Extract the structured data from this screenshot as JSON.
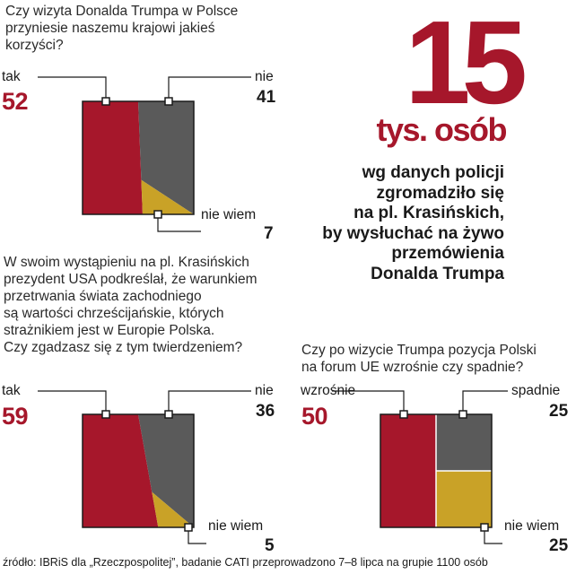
{
  "colors": {
    "red": "#a6172b",
    "gray": "#5a5a5a",
    "gold": "#c9a227",
    "line": "#1a1a1a"
  },
  "hero": {
    "number": "15",
    "unit": "tys. osób",
    "desc": [
      "wg danych policji",
      "zgromadziło się",
      "na pl. Krasińskich,",
      "by wysłuchać na żywo",
      "przemówienia",
      "Donalda Trumpa"
    ]
  },
  "source": "źródło: IBRiS dla „Rzeczpospolitej”, badanie CATI przeprowadzono 7–8 lipca na grupie 1100 osób",
  "chart_data": [
    {
      "type": "bar",
      "title": [
        "Czy wizyta Donalda Trumpa w Polsce",
        "przyniesie naszemu krajowi jakieś",
        "korzyści?"
      ],
      "categories": [
        "tak",
        "nie",
        "nie wiem"
      ],
      "values": [
        52,
        41,
        7
      ],
      "value_labels": [
        "52",
        "41",
        "7"
      ]
    },
    {
      "type": "bar",
      "title": [
        "W swoim wystąpieniu na pl. Krasińskich",
        "prezydent USA podkreślał, że warunkiem",
        "przetrwania świata zachodniego",
        "są wartości chrześcijańskie, których",
        "strażnikiem jest w Europie Polska.",
        "Czy zgadzasz się z tym twierdzeniem?"
      ],
      "categories": [
        "tak",
        "nie",
        "nie wiem"
      ],
      "values": [
        59,
        36,
        5
      ],
      "value_labels": [
        "59",
        "36",
        "5"
      ]
    },
    {
      "type": "bar",
      "title": [
        "Czy po wizycie Trumpa pozycja Polski",
        "na forum UE wzrośnie czy spadnie?"
      ],
      "categories": [
        "wzrośnie",
        "spadnie",
        "nie wiem"
      ],
      "values": [
        50,
        25,
        25
      ],
      "value_labels": [
        "50",
        "25",
        "25"
      ]
    }
  ]
}
